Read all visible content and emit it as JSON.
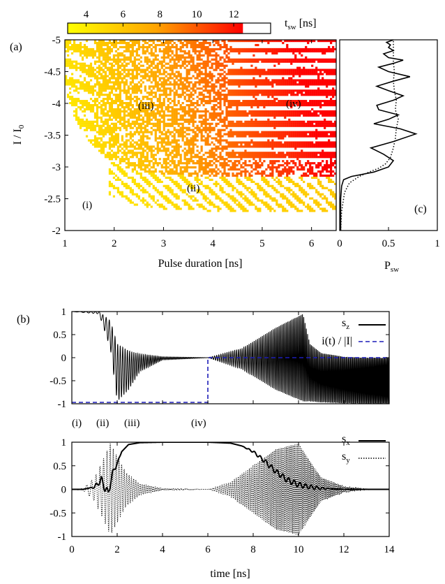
{
  "chart_data": [
    {
      "id": "a",
      "type": "heatmap",
      "panel_label": "(a)",
      "xlabel": "Pulse duration [ns]",
      "ylabel_main": "I / I",
      "ylabel_sub": "0",
      "xlim": [
        1,
        6.5
      ],
      "ylim": [
        -2,
        -5
      ],
      "xticks": [
        "1",
        "2",
        "3",
        "4",
        "5",
        "6"
      ],
      "yticks": [
        "-2",
        "-2.5",
        "-3",
        "-3.5",
        "-4",
        "-4.5",
        "-5"
      ],
      "colorbar": {
        "label_main": "t",
        "label_sub": "sw",
        "label_unit": " [ns]",
        "range": [
          3,
          14
        ],
        "filled_max": 12.5,
        "ticks": [
          "4",
          "6",
          "8",
          "10",
          "12"
        ],
        "colors": [
          "#ffff00",
          "#ffa500",
          "#ff0000"
        ]
      },
      "regions": [
        "(i)",
        "(ii)",
        "(iii)",
        "(iv)"
      ]
    },
    {
      "id": "c",
      "type": "line",
      "panel_label": "(c)",
      "xlabel_main": "P",
      "xlabel_sub": "sw",
      "xlim": [
        0,
        1
      ],
      "ylim": [
        -2,
        -5
      ],
      "xticks": [
        "0",
        "0.5",
        "1"
      ],
      "series": [
        {
          "style": "solid",
          "x": [
            0.01,
            0.01,
            0.02,
            0.04,
            0.12,
            0.35,
            0.5,
            0.55,
            0.45,
            0.32,
            0.55,
            0.78,
            0.62,
            0.35,
            0.5,
            0.6,
            0.4,
            0.38,
            0.55,
            0.65,
            0.5,
            0.38,
            0.55,
            0.72,
            0.5,
            0.4,
            0.55,
            0.65,
            0.5,
            0.45,
            0.55,
            0.5,
            0.52,
            0.48,
            0.55
          ],
          "y": [
            -2.0,
            -2.5,
            -2.7,
            -2.8,
            -2.85,
            -2.92,
            -3.0,
            -3.1,
            -3.2,
            -3.3,
            -3.4,
            -3.52,
            -3.6,
            -3.68,
            -3.75,
            -3.82,
            -3.9,
            -3.97,
            -4.05,
            -4.12,
            -4.2,
            -4.27,
            -4.35,
            -4.42,
            -4.5,
            -4.57,
            -4.63,
            -4.68,
            -4.72,
            -4.78,
            -4.83,
            -4.88,
            -4.92,
            -4.96,
            -5.0
          ]
        },
        {
          "style": "dotted",
          "x": [
            0.01,
            0.02,
            0.05,
            0.1,
            0.2,
            0.3,
            0.4,
            0.47,
            0.52,
            0.55,
            0.57,
            0.58,
            0.6,
            0.57,
            0.58,
            0.56,
            0.55,
            0.56,
            0.55,
            0.55,
            0.55
          ],
          "y": [
            -2.0,
            -2.3,
            -2.6,
            -2.75,
            -2.85,
            -2.92,
            -2.98,
            -3.05,
            -3.15,
            -3.3,
            -3.45,
            -3.6,
            -3.75,
            -3.9,
            -4.05,
            -4.2,
            -4.35,
            -4.5,
            -4.65,
            -4.8,
            -5.0
          ]
        }
      ]
    },
    {
      "id": "b-top",
      "type": "line",
      "panel_label": "(b)",
      "xlim": [
        0,
        14
      ],
      "ylim": [
        -1,
        1
      ],
      "yticks": [
        "-1",
        "-0.5",
        "0",
        "0.5",
        "1"
      ],
      "series": [
        {
          "name_main": "s",
          "name_sub": "z",
          "style": "solid",
          "envelope_t": [
            0,
            1.2,
            1.7,
            2.0,
            2.5,
            3.0,
            4.0,
            6.0,
            7.5,
            9.0,
            10.2,
            10.5,
            11.0,
            12.0,
            13.0,
            14.0
          ],
          "envelope_upper": [
            1,
            1,
            0.8,
            0.3,
            0.15,
            0.08,
            0.02,
            0,
            0.2,
            0.65,
            0.95,
            0.3,
            0.1,
            0.02,
            0,
            0
          ],
          "envelope_lower": [
            1,
            0.95,
            0.2,
            -0.95,
            -0.7,
            -0.3,
            -0.05,
            0,
            -0.25,
            -0.7,
            -0.95,
            -0.95,
            -0.97,
            -0.99,
            -1,
            -1
          ]
        },
        {
          "name": "i(t) / |I|",
          "style": "dashed",
          "color": "#1c1cb8",
          "t": [
            0,
            6,
            6,
            14
          ],
          "v": [
            -0.97,
            -0.97,
            0,
            0
          ]
        }
      ]
    },
    {
      "id": "b-bottom",
      "type": "line",
      "xlabel": "time [ns]",
      "xlim": [
        0,
        14
      ],
      "ylim": [
        -1,
        1
      ],
      "xticks": [
        "0",
        "2",
        "4",
        "6",
        "8",
        "10",
        "12",
        "14"
      ],
      "yticks": [
        "-1",
        "-0.5",
        "0",
        "0.5",
        "1"
      ],
      "phase_labels": [
        "(i)",
        "(ii)",
        "(iii)",
        "(iv)"
      ],
      "series": [
        {
          "name_main": "s",
          "name_sub": "x",
          "style": "solid",
          "t": [
            0,
            0.5,
            1.0,
            1.3,
            1.6,
            1.8,
            2.0,
            2.2,
            2.5,
            3.0,
            4.0,
            6.0,
            7.0,
            7.5,
            8.0,
            8.5,
            9.0,
            9.5,
            10.0,
            10.5,
            11.0,
            12.0,
            14.0
          ],
          "v": [
            0,
            0,
            0.05,
            0.2,
            -0.1,
            0.35,
            0.55,
            0.8,
            0.95,
            0.99,
            1,
            1,
            0.98,
            0.92,
            0.8,
            0.6,
            0.38,
            0.2,
            0.1,
            0.05,
            0.02,
            0,
            0
          ]
        },
        {
          "name_main": "s",
          "name_sub": "y",
          "style": "dotted",
          "envelope_t": [
            0,
            0.5,
            1.0,
            1.4,
            1.7,
            2.0,
            2.4,
            3.0,
            4.0,
            6.0,
            7.0,
            8.0,
            9.0,
            10.0,
            10.5,
            11.0,
            12.0,
            13.0,
            14.0
          ],
          "envelope_amp": [
            0,
            0.02,
            0.25,
            0.65,
            0.98,
            0.7,
            0.35,
            0.12,
            0.02,
            0,
            0.15,
            0.5,
            0.85,
            0.97,
            0.6,
            0.25,
            0.06,
            0.01,
            0
          ]
        }
      ]
    }
  ]
}
